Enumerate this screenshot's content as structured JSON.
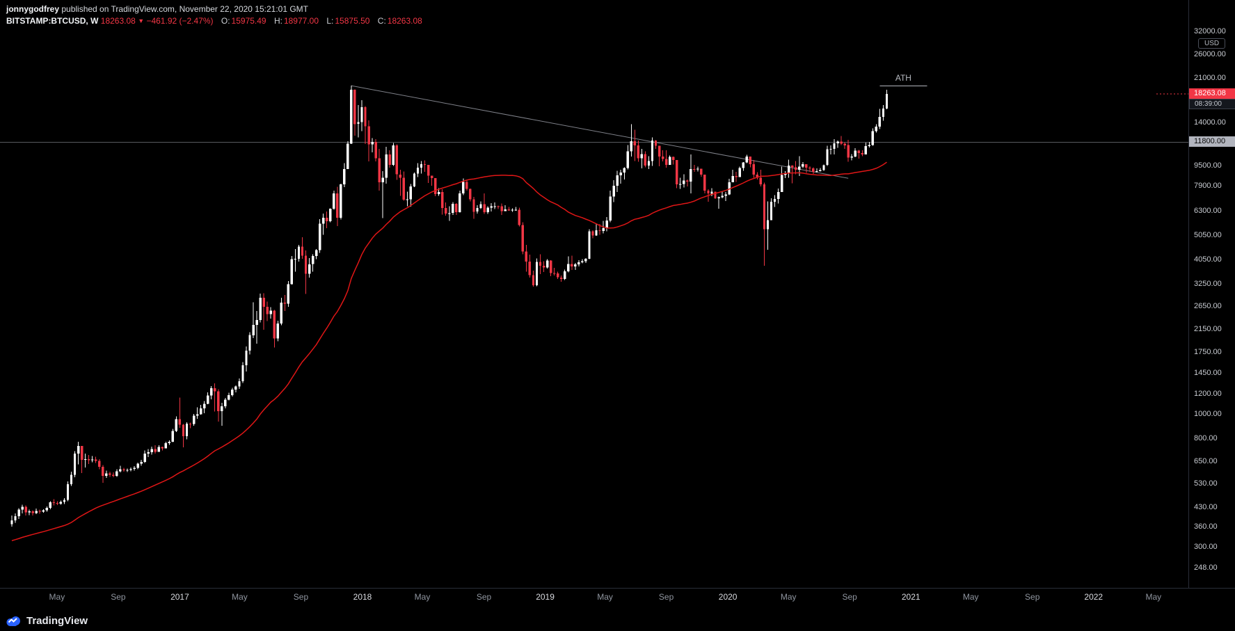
{
  "header": {
    "author": "jonnygodfrey",
    "published": " published on TradingView.com, November 22, 2020 15:21:01 GMT",
    "symbol": "BITSTAMP:BTCUSD, W",
    "last_price": "18263.08",
    "direction_arrow": "▼",
    "change": "−461.92 (−2.47%)",
    "o_label": "O:",
    "o": "15975.49",
    "h_label": "H:",
    "h": "18977.00",
    "l_label": "L:",
    "l": "15875.50",
    "c_label": "C:",
    "c": "18263.08"
  },
  "price_axis": {
    "currency_button": "USD",
    "ticks": [
      32000,
      26000,
      21000,
      14000,
      9500,
      7900,
      6300,
      5050,
      4050,
      3250,
      2650,
      2150,
      1750,
      1450,
      1200,
      1000,
      800,
      650,
      530,
      430,
      360,
      300,
      248
    ],
    "line_label_text": "11800.00",
    "last_price_label": "18263.08",
    "countdown": "08:39:00"
  },
  "time_axis": {
    "labels": [
      {
        "text": "May",
        "week": 12.9
      },
      {
        "text": "Sep",
        "week": 30.4
      },
      {
        "text": "2017",
        "week": 48.0,
        "major": true
      },
      {
        "text": "May",
        "week": 65.1
      },
      {
        "text": "Sep",
        "week": 82.6
      },
      {
        "text": "2018",
        "week": 100.2,
        "major": true
      },
      {
        "text": "May",
        "week": 117.3
      },
      {
        "text": "Sep",
        "week": 134.9
      },
      {
        "text": "2019",
        "week": 152.4,
        "major": true
      },
      {
        "text": "May",
        "week": 169.5
      },
      {
        "text": "Sep",
        "week": 187.0
      },
      {
        "text": "2020",
        "week": 204.6,
        "major": true
      },
      {
        "text": "May",
        "week": 221.9
      },
      {
        "text": "Sep",
        "week": 239.4
      },
      {
        "text": "2021",
        "week": 256.9,
        "major": true
      },
      {
        "text": "May",
        "week": 274.0
      },
      {
        "text": "Sep",
        "week": 291.6
      },
      {
        "text": "2022",
        "week": 309.1,
        "major": true
      },
      {
        "text": "May",
        "week": 326.2
      }
    ]
  },
  "annotations": {
    "ath": {
      "text": "ATH",
      "price": 19660,
      "week_start": 248,
      "week_end": 261.5
    },
    "trendline": {
      "from": {
        "week": 97,
        "price": 19666
      },
      "to": {
        "week": 239,
        "price": 8500
      }
    },
    "hline": {
      "price": 11800
    }
  },
  "footer": {
    "logo_text": "TradingView",
    "logo_icon": "tradingview-cloud-icon"
  },
  "colors": {
    "background": "#000000",
    "up": "#ffffff",
    "down": "#f23645",
    "ma": "#e01616",
    "trendline": "#9598a1",
    "hline": "#b2b5be",
    "ath": "#b2b5be",
    "last_price_bg": "#f23645",
    "label_11800_bg": "#b2b5be",
    "logo_blue": "#2962ff"
  },
  "chart_data": {
    "type": "candlestick",
    "symbol": "BITSTAMP:BTCUSD",
    "interval": "1W",
    "y_scale": "log",
    "ylabel": "USD",
    "start_date": "2016-02-01",
    "first_open": 370,
    "ohlc_current": {
      "o": 15975.49,
      "h": 18977.0,
      "l": 15875.5,
      "c": 18263.08
    },
    "ma": {
      "type": "SMA",
      "length": 50,
      "prehistory_start": 255,
      "prehistory_end": 380
    },
    "candles_hlc": [
      [
        400,
        362,
        383
      ],
      [
        408,
        375,
        398
      ],
      [
        428,
        388,
        422
      ],
      [
        442,
        408,
        433
      ],
      [
        438,
        400,
        412
      ],
      [
        422,
        402,
        416
      ],
      [
        420,
        400,
        409
      ],
      [
        426,
        406,
        417
      ],
      [
        422,
        407,
        415
      ],
      [
        424,
        410,
        420
      ],
      [
        434,
        414,
        429
      ],
      [
        456,
        424,
        451
      ],
      [
        464,
        438,
        449
      ],
      [
        456,
        440,
        446
      ],
      [
        459,
        441,
        453
      ],
      [
        468,
        444,
        461
      ],
      [
        545,
        455,
        532
      ],
      [
        596,
        524,
        578
      ],
      [
        718,
        566,
        702
      ],
      [
        782,
        636,
        752
      ],
      [
        718,
        588,
        662
      ],
      [
        702,
        618,
        668
      ],
      [
        692,
        638,
        661
      ],
      [
        686,
        648,
        664
      ],
      [
        682,
        644,
        656
      ],
      [
        668,
        608,
        622
      ],
      [
        632,
        538,
        574
      ],
      [
        602,
        562,
        586
      ],
      [
        596,
        568,
        579
      ],
      [
        591,
        566,
        573
      ],
      [
        608,
        568,
        598
      ],
      [
        628,
        592,
        609
      ],
      [
        616,
        596,
        602
      ],
      [
        613,
        594,
        604
      ],
      [
        618,
        597,
        611
      ],
      [
        627,
        602,
        616
      ],
      [
        646,
        609,
        641
      ],
      [
        662,
        629,
        651
      ],
      [
        722,
        644,
        701
      ],
      [
        732,
        679,
        711
      ],
      [
        747,
        694,
        731
      ],
      [
        756,
        701,
        712
      ],
      [
        756,
        719,
        744
      ],
      [
        747,
        721,
        736
      ],
      [
        782,
        739,
        771
      ],
      [
        792,
        758,
        781
      ],
      [
        878,
        778,
        862
      ],
      [
        982,
        852,
        958
      ],
      [
        1165,
        885,
        912
      ],
      [
        918,
        742,
        822
      ],
      [
        932,
        798,
        921
      ],
      [
        928,
        882,
        916
      ],
      [
        1005,
        902,
        988
      ],
      [
        1068,
        962,
        1002
      ],
      [
        1092,
        998,
        1056
      ],
      [
        1128,
        1012,
        1102
      ],
      [
        1222,
        1098,
        1188
      ],
      [
        1292,
        1146,
        1268
      ],
      [
        1328,
        1028,
        1232
      ],
      [
        1258,
        938,
        1032
      ],
      [
        1112,
        902,
        1078
      ],
      [
        1162,
        1058,
        1142
      ],
      [
        1218,
        1138,
        1192
      ],
      [
        1272,
        1178,
        1252
      ],
      [
        1302,
        1222,
        1288
      ],
      [
        1388,
        1262,
        1352
      ],
      [
        1608,
        1332,
        1562
      ],
      [
        1852,
        1478,
        1782
      ],
      [
        2108,
        1722,
        2052
      ],
      [
        2768,
        1998,
        2252
      ],
      [
        2552,
        1902,
        2352
      ],
      [
        2992,
        2302,
        2882
      ],
      [
        3002,
        2152,
        2652
      ],
      [
        2782,
        2332,
        2482
      ],
      [
        2642,
        2382,
        2562
      ],
      [
        2582,
        1832,
        1992
      ],
      [
        2342,
        1942,
        2282
      ],
      [
        2882,
        2242,
        2752
      ],
      [
        2952,
        2552,
        2732
      ],
      [
        3352,
        2652,
        3252
      ],
      [
        4202,
        3242,
        4082
      ],
      [
        4482,
        3652,
        4102
      ],
      [
        4652,
        4002,
        4582
      ],
      [
        4982,
        4102,
        4222
      ],
      [
        4422,
        2982,
        3582
      ],
      [
        4122,
        3462,
        3902
      ],
      [
        4272,
        3652,
        4202
      ],
      [
        4472,
        4082,
        4432
      ],
      [
        5862,
        4322,
        5642
      ],
      [
        6182,
        5102,
        5952
      ],
      [
        6302,
        5402,
        5752
      ],
      [
        6472,
        5702,
        6452
      ],
      [
        7602,
        6402,
        7402
      ],
      [
        7882,
        5512,
        5952
      ],
      [
        8102,
        5852,
        8042
      ],
      [
        9752,
        7852,
        9252
      ],
      [
        11882,
        9302,
        11652
      ],
      [
        19666,
        11602,
        18952
      ],
      [
        19052,
        12502,
        13902
      ],
      [
        16502,
        12302,
        14152
      ],
      [
        17252,
        13052,
        16202
      ],
      [
        16352,
        11602,
        13602
      ],
      [
        14352,
        9902,
        11552
      ],
      [
        12252,
        10752,
        11802
      ],
      [
        12102,
        9902,
        10202
      ],
      [
        11102,
        7602,
        8202
      ],
      [
        9082,
        5922,
        8552
      ],
      [
        11302,
        8102,
        10552
      ],
      [
        10952,
        9352,
        9602
      ],
      [
        11702,
        9502,
        11452
      ],
      [
        11552,
        8372,
        8802
      ],
      [
        9182,
        7252,
        8552
      ],
      [
        9052,
        6932,
        7002
      ],
      [
        7542,
        6602,
        7022
      ],
      [
        8082,
        6572,
        7902
      ],
      [
        8942,
        7852,
        8872
      ],
      [
        9762,
        8602,
        9352
      ],
      [
        9952,
        8872,
        9652
      ],
      [
        9992,
        9002,
        9612
      ],
      [
        9402,
        8152,
        8702
      ],
      [
        8602,
        7952,
        8522
      ],
      [
        8382,
        7222,
        7362
      ],
      [
        7782,
        7252,
        7502
      ],
      [
        7702,
        6122,
        6502
      ],
      [
        6832,
        6052,
        6172
      ],
      [
        6602,
        5772,
        6202
      ],
      [
        6852,
        6102,
        6742
      ],
      [
        6782,
        6102,
        6252
      ],
      [
        7602,
        6232,
        7422
      ],
      [
        8502,
        7302,
        8232
      ],
      [
        8342,
        7602,
        7732
      ],
      [
        7742,
        6902,
        7032
      ],
      [
        7172,
        5882,
        6282
      ],
      [
        6652,
        6182,
        6492
      ],
      [
        6902,
        6432,
        6722
      ],
      [
        7412,
        6162,
        6252
      ],
      [
        6602,
        6152,
        6522
      ],
      [
        6782,
        6292,
        6602
      ],
      [
        6832,
        6432,
        6602
      ],
      [
        6642,
        6432,
        6592
      ],
      [
        6762,
        6102,
        6312
      ],
      [
        6652,
        6342,
        6412
      ],
      [
        6552,
        6322,
        6342
      ],
      [
        6482,
        6272,
        6392
      ],
      [
        6562,
        6332,
        6402
      ],
      [
        6512,
        5492,
        5562
      ],
      [
        5702,
        4272,
        4382
      ],
      [
        4652,
        3652,
        4002
      ],
      [
        4252,
        3462,
        3532
      ],
      [
        3682,
        3182,
        3222
      ],
      [
        4112,
        3192,
        3982
      ],
      [
        4272,
        3572,
        3852
      ],
      [
        4012,
        3632,
        3792
      ],
      [
        4092,
        3752,
        4032
      ],
      [
        4052,
        3502,
        3602
      ],
      [
        3782,
        3522,
        3592
      ],
      [
        3642,
        3412,
        3462
      ],
      [
        3522,
        3332,
        3412
      ],
      [
        3712,
        3382,
        3662
      ],
      [
        4192,
        3622,
        3912
      ],
      [
        4222,
        3702,
        3822
      ],
      [
        3942,
        3702,
        3902
      ],
      [
        4042,
        3822,
        3972
      ],
      [
        4092,
        3932,
        4012
      ],
      [
        4122,
        3952,
        4102
      ],
      [
        5352,
        4082,
        5252
      ],
      [
        5302,
        4932,
        5062
      ],
      [
        5642,
        5052,
        5302
      ],
      [
        5622,
        5102,
        5272
      ],
      [
        5772,
        5152,
        5412
      ],
      [
        5992,
        5262,
        5792
      ],
      [
        7592,
        5702,
        7202
      ],
      [
        8352,
        6852,
        7952
      ],
      [
        9092,
        7502,
        8722
      ],
      [
        9182,
        8102,
        8952
      ],
      [
        9392,
        8422,
        9322
      ],
      [
        11482,
        9212,
        10852
      ],
      [
        13882,
        10352,
        11902
      ],
      [
        13182,
        9952,
        11452
      ],
      [
        11982,
        9872,
        10202
      ],
      [
        11102,
        9302,
        10582
      ],
      [
        10852,
        9402,
        9532
      ],
      [
        10402,
        9232,
        9932
      ],
      [
        12322,
        9502,
        11952
      ],
      [
        12002,
        11102,
        11402
      ],
      [
        11082,
        9472,
        10352
      ],
      [
        10952,
        9902,
        10132
      ],
      [
        10942,
        9352,
        9592
      ],
      [
        10462,
        10002,
        10322
      ],
      [
        10352,
        9622,
        10042
      ],
      [
        10032,
        7772,
        8052
      ],
      [
        8542,
        7712,
        8062
      ],
      [
        8822,
        7832,
        8322
      ],
      [
        8412,
        7892,
        8242
      ],
      [
        10542,
        7402,
        9232
      ],
      [
        9602,
        9002,
        9202
      ],
      [
        9462,
        9052,
        9282
      ],
      [
        9152,
        8632,
        8782
      ],
      [
        8802,
        7402,
        7602
      ],
      [
        7702,
        6862,
        7402
      ],
      [
        7762,
        7232,
        7522
      ],
      [
        7402,
        7052,
        7102
      ],
      [
        7202,
        6452,
        7152
      ],
      [
        7522,
        7082,
        7252
      ],
      [
        7502,
        6912,
        7352
      ],
      [
        8462,
        7302,
        8202
      ],
      [
        9192,
        8472,
        8672
      ],
      [
        9002,
        8222,
        8602
      ],
      [
        9452,
        8592,
        9342
      ],
      [
        9852,
        9102,
        9802
      ],
      [
        10502,
        9752,
        10352
      ],
      [
        10292,
        9402,
        9652
      ],
      [
        10032,
        8532,
        8782
      ],
      [
        8972,
        8412,
        8532
      ],
      [
        9182,
        7902,
        8052
      ],
      [
        8182,
        3852,
        5352
      ],
      [
        6902,
        4452,
        5822
      ],
      [
        7102,
        5872,
        6862
      ],
      [
        7302,
        6562,
        7052
      ],
      [
        7752,
        6772,
        7502
      ],
      [
        9452,
        7652,
        8752
      ],
      [
        9072,
        8522,
        8902
      ],
      [
        10072,
        8532,
        9552
      ],
      [
        9582,
        8122,
        9382
      ],
      [
        9952,
        8822,
        9182
      ],
      [
        10382,
        8672,
        9452
      ],
      [
        9852,
        9332,
        9652
      ],
      [
        9582,
        8922,
        9352
      ],
      [
        9482,
        9002,
        9302
      ],
      [
        9382,
        8842,
        9012
      ],
      [
        9292,
        8942,
        9072
      ],
      [
        9342,
        9052,
        9162
      ],
      [
        9632,
        9102,
        9582
      ],
      [
        11422,
        9502,
        11052
      ],
      [
        11462,
        10562,
        11102
      ],
      [
        12122,
        10552,
        11682
      ],
      [
        11962,
        11202,
        11852
      ],
      [
        12482,
        11502,
        11652
      ],
      [
        11782,
        11102,
        11472
      ],
      [
        12062,
        9882,
        10252
      ],
      [
        10582,
        10002,
        10342
      ],
      [
        11182,
        10302,
        10922
      ],
      [
        10992,
        10152,
        10692
      ],
      [
        10942,
        10382,
        10552
      ],
      [
        11732,
        10562,
        11372
      ],
      [
        11832,
        11222,
        11502
      ],
      [
        13362,
        11402,
        13022
      ],
      [
        13882,
        12882,
        13562
      ],
      [
        15962,
        13272,
        14822
      ],
      [
        16482,
        14342,
        15975.49
      ],
      [
        18977,
        15875.5,
        18263.08
      ]
    ]
  }
}
